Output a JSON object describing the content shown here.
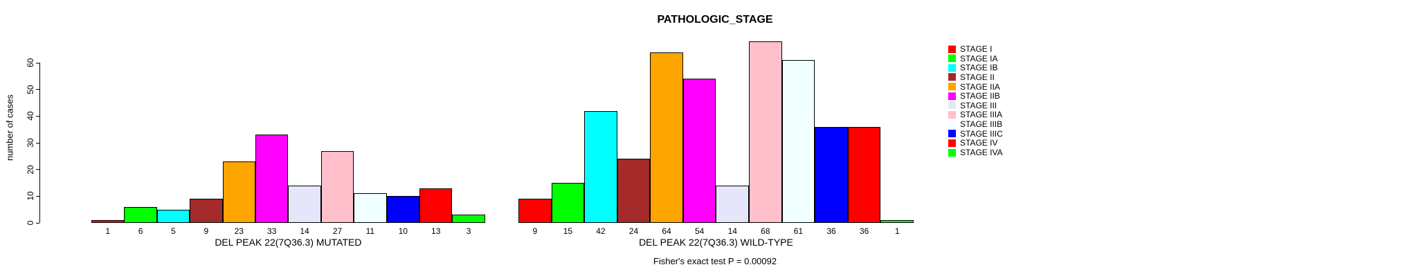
{
  "title": "PATHOLOGIC_STAGE",
  "y_axis": {
    "label": "number of cases",
    "ticks": [
      0,
      10,
      20,
      30,
      40,
      50,
      60
    ]
  },
  "legend": {
    "position": "right",
    "items": [
      {
        "label": "STAGE I",
        "color": "#FF0000"
      },
      {
        "label": "STAGE IA",
        "color": "#00FF00"
      },
      {
        "label": "STAGE IB",
        "color": "#00FFFF"
      },
      {
        "label": "STAGE II",
        "color": "#A52A2A"
      },
      {
        "label": "STAGE IIA",
        "color": "#FFA500"
      },
      {
        "label": "STAGE IIB",
        "color": "#FF00FF"
      },
      {
        "label": "STAGE III",
        "color": "#E6E6FA"
      },
      {
        "label": "STAGE IIIA",
        "color": "#FFC0CB"
      },
      {
        "label": "STAGE IIIB",
        "color": "#F0FFFF"
      },
      {
        "label": "STAGE IIIC",
        "color": "#0000FF"
      },
      {
        "label": "STAGE IV",
        "color": "#FF0000"
      },
      {
        "label": "STAGE IVA",
        "color": "#00FF00"
      }
    ]
  },
  "chart_data": [
    {
      "type": "bar",
      "title": "PATHOLOGIC_STAGE",
      "xlabel": "DEL PEAK 22(7Q36.3) MUTATED",
      "ylabel": "number of cases",
      "categories": [
        "STAGE I",
        "STAGE IA",
        "STAGE IB",
        "STAGE II",
        "STAGE IIA",
        "STAGE IIB",
        "STAGE III",
        "STAGE IIIA",
        "STAGE IIIB",
        "STAGE IIIC",
        "STAGE IV",
        "STAGE IVA"
      ],
      "values": [
        1,
        6,
        5,
        9,
        23,
        33,
        14,
        27,
        11,
        10,
        13,
        3
      ],
      "bar_labels": [
        "1",
        "6",
        "5",
        "9",
        "23",
        "33",
        "14",
        "27",
        "11",
        "10",
        "13",
        "3"
      ],
      "bar_colors": [
        "#FF0000",
        "#00FF00",
        "#00FFFF",
        "#A52A2A",
        "#FFA500",
        "#FF00FF",
        "#E6E6FA",
        "#FFC0CB",
        "#F0FFFF",
        "#0000FF",
        "#FF0000",
        "#00FF00"
      ],
      "ylim": [
        0,
        60
      ],
      "grid": false,
      "legend_position": "right"
    },
    {
      "type": "bar",
      "title": "PATHOLOGIC_STAGE",
      "xlabel": "DEL PEAK 22(7Q36.3) WILD-TYPE",
      "ylabel": "number of cases",
      "categories": [
        "STAGE I",
        "STAGE IA",
        "STAGE IB",
        "STAGE II",
        "STAGE IIA",
        "STAGE IIB",
        "STAGE III",
        "STAGE IIIA",
        "STAGE IIIB",
        "STAGE IIIC",
        "STAGE IV",
        "STAGE IVA"
      ],
      "values": [
        9,
        15,
        42,
        24,
        64,
        54,
        14,
        68,
        61,
        36,
        36,
        1
      ],
      "bar_labels": [
        "9",
        "15",
        "42",
        "24",
        "64",
        "54",
        "14",
        "68",
        "61",
        "36",
        "36",
        "1"
      ],
      "bar_colors": [
        "#FF0000",
        "#00FF00",
        "#00FFFF",
        "#A52A2A",
        "#FFA500",
        "#FF00FF",
        "#E6E6FA",
        "#FFC0CB",
        "#F0FFFF",
        "#0000FF",
        "#FF0000",
        "#00FF00"
      ],
      "ylim": [
        0,
        60
      ],
      "grid": false,
      "legend_position": "right"
    }
  ],
  "footer": {
    "text": "Fisher's exact test P = 0.00092"
  }
}
